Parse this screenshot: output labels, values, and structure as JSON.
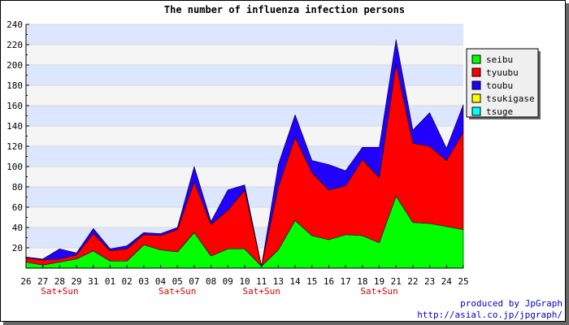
{
  "chart_data": {
    "type": "area",
    "stacked": true,
    "title": "The number of influenza infection persons",
    "xlabel": "",
    "ylabel": "",
    "ylim": [
      0,
      240
    ],
    "yticks": [
      20,
      40,
      60,
      80,
      100,
      120,
      140,
      160,
      180,
      200,
      220,
      240
    ],
    "grid": true,
    "legend_position": "right",
    "categories": [
      "26",
      "27",
      "28",
      "29",
      "31",
      "01",
      "02",
      "03",
      "04",
      "05",
      "07",
      "08",
      "09",
      "10",
      "11",
      "13",
      "14",
      "15",
      "16",
      "17",
      "18",
      "19",
      "21",
      "22",
      "23",
      "24",
      "25"
    ],
    "weekend_marks": [
      {
        "category": "28",
        "label": "Sat+Sun"
      },
      {
        "category": "05",
        "label": "Sat+Sun"
      },
      {
        "category": "11",
        "label": "Sat+Sun"
      },
      {
        "category": "19",
        "label": "Sat+Sun"
      }
    ],
    "series": [
      {
        "name": "seibu",
        "color": "#00ff00",
        "values": [
          6,
          3,
          6,
          9,
          17,
          7,
          7,
          23,
          18,
          16,
          35,
          12,
          19,
          19,
          2,
          18,
          47,
          32,
          28,
          33,
          32,
          25,
          71,
          45,
          44,
          41,
          38
        ]
      },
      {
        "name": "tyuubu",
        "color": "#ff0000",
        "values": [
          4,
          5,
          3,
          4,
          17,
          10,
          12,
          10,
          14,
          22,
          50,
          31,
          38,
          58,
          0,
          62,
          82,
          62,
          49,
          48,
          75,
          64,
          130,
          78,
          76,
          65,
          96
        ]
      },
      {
        "name": "toubu",
        "color": "#2200ff",
        "values": [
          1,
          1,
          10,
          2,
          5,
          2,
          3,
          2,
          2,
          2,
          15,
          3,
          20,
          5,
          0,
          22,
          22,
          12,
          25,
          15,
          12,
          30,
          24,
          13,
          33,
          12,
          27
        ]
      },
      {
        "name": "tsukigase",
        "color": "#ffff00",
        "values": [
          0,
          0,
          0,
          0,
          0,
          0,
          0,
          0,
          0,
          0,
          0,
          0,
          0,
          0,
          0,
          0,
          0,
          0,
          0,
          0,
          0,
          0,
          0,
          0,
          0,
          0,
          0
        ]
      },
      {
        "name": "tsuge",
        "color": "#00ffff",
        "values": [
          0,
          0,
          0,
          0,
          0,
          0,
          0,
          0,
          0,
          0,
          0,
          0,
          0,
          0,
          0,
          0,
          0,
          0,
          0,
          0,
          0,
          0,
          0,
          0,
          0,
          0,
          0
        ]
      }
    ]
  },
  "credits": {
    "line1": "produced by JpGraph",
    "line2": "http://asial.co.jp/jpgraph/"
  }
}
